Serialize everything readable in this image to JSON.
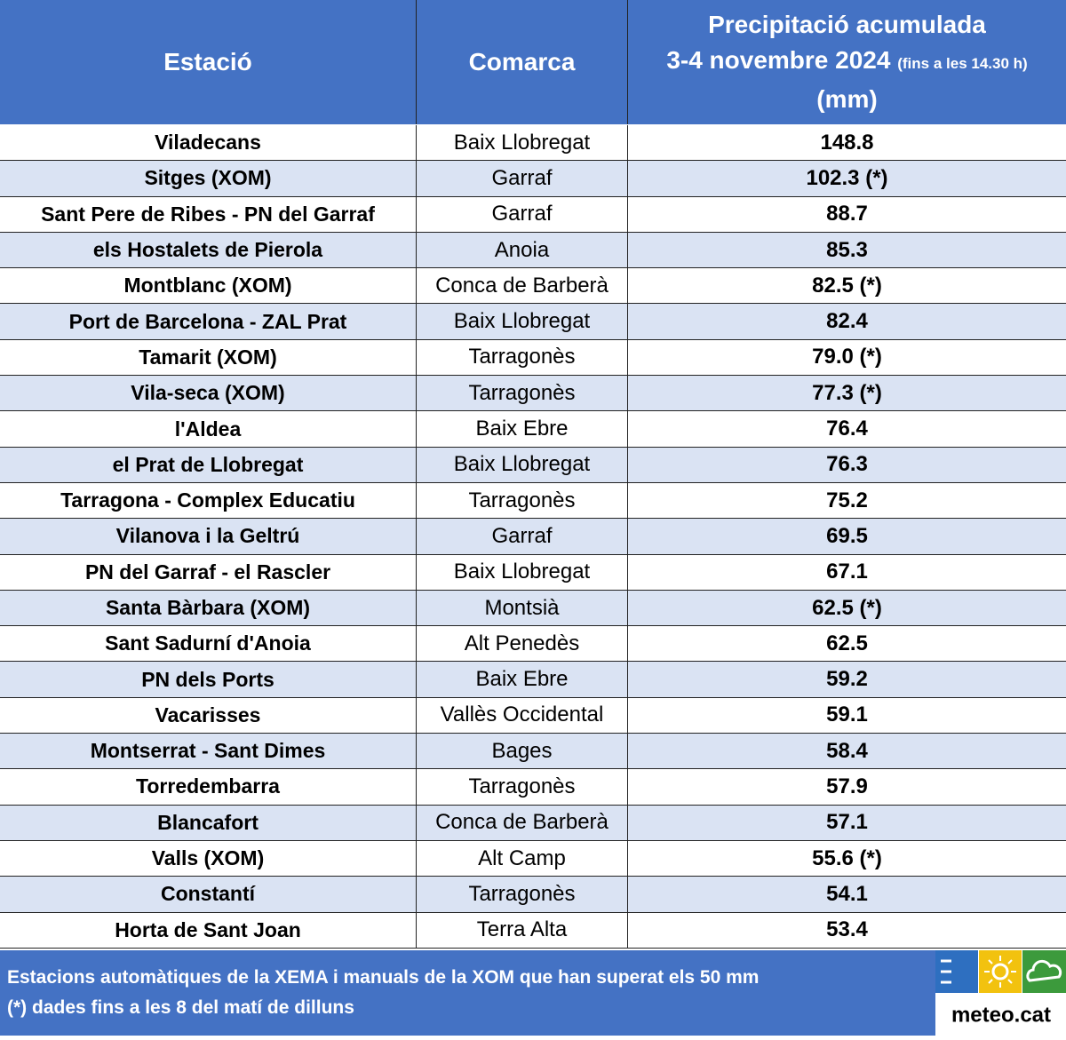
{
  "header": {
    "columns": [
      "Estació",
      "Comarca"
    ],
    "precip_title": "Precipitació acumulada",
    "precip_dates": "3-4 novembre 2024",
    "precip_note": "(fins a les 14.30 h)",
    "precip_unit": "(mm)"
  },
  "table": {
    "rows": [
      [
        "Viladecans",
        "Baix Llobregat",
        "148.8"
      ],
      [
        "Sitges (XOM)",
        "Garraf",
        "102.3 (*)"
      ],
      [
        "Sant Pere de Ribes - PN del Garraf",
        "Garraf",
        "88.7"
      ],
      [
        "els Hostalets de Pierola",
        "Anoia",
        "85.3"
      ],
      [
        "Montblanc (XOM)",
        "Conca de Barberà",
        "82.5 (*)"
      ],
      [
        "Port de Barcelona - ZAL Prat",
        "Baix Llobregat",
        "82.4"
      ],
      [
        "Tamarit (XOM)",
        "Tarragonès",
        "79.0 (*)"
      ],
      [
        "Vila-seca (XOM)",
        "Tarragonès",
        "77.3 (*)"
      ],
      [
        "l'Aldea",
        "Baix Ebre",
        "76.4"
      ],
      [
        "el Prat de Llobregat",
        "Baix Llobregat",
        "76.3"
      ],
      [
        "Tarragona - Complex Educatiu",
        "Tarragonès",
        "75.2"
      ],
      [
        "Vilanova i la Geltrú",
        "Garraf",
        "69.5"
      ],
      [
        "PN del Garraf - el Rascler",
        "Baix Llobregat",
        "67.1"
      ],
      [
        "Santa Bàrbara (XOM)",
        "Montsià",
        "62.5 (*)"
      ],
      [
        "Sant Sadurní d'Anoia",
        "Alt Penedès",
        "62.5"
      ],
      [
        "PN dels Ports",
        "Baix Ebre",
        "59.2"
      ],
      [
        "Vacarisses",
        "Vallès Occidental",
        "59.1"
      ],
      [
        "Montserrat - Sant Dimes",
        "Bages",
        "58.4"
      ],
      [
        "Torredembarra",
        "Tarragonès",
        "57.9"
      ],
      [
        "Blancafort",
        "Conca de Barberà",
        "57.1"
      ],
      [
        "Valls (XOM)",
        "Alt Camp",
        "55.6 (*)"
      ],
      [
        "Constantí",
        "Tarragonès",
        "54.1"
      ],
      [
        "Horta de Sant Joan",
        "Terra Alta",
        "53.4"
      ]
    ]
  },
  "footer": {
    "line1": "Estacions automàtiques de la XEMA i manuals de la XOM que han superat els 50 mm",
    "line2": "(*) dades fins a les 8 del matí de dilluns",
    "logo": "meteo.cat"
  }
}
